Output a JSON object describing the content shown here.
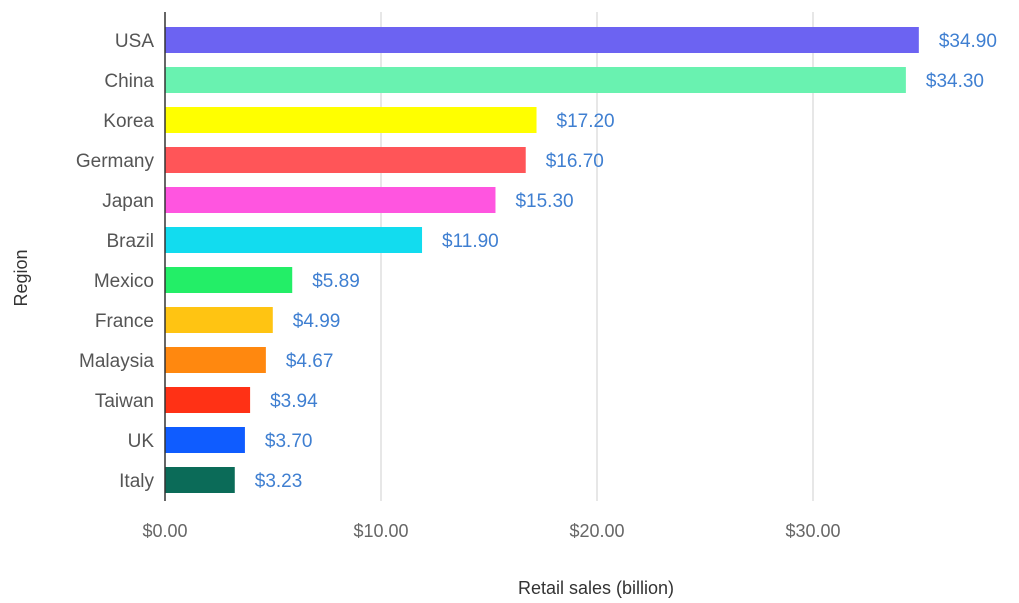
{
  "chart_data": {
    "type": "bar",
    "orientation": "horizontal",
    "title": "",
    "xlabel": "Retail sales (billion)",
    "ylabel": "Region",
    "xlim": [
      0,
      35
    ],
    "x_ticks": [
      {
        "value": 0,
        "label": "$0.00"
      },
      {
        "value": 10,
        "label": "$10.00"
      },
      {
        "value": 20,
        "label": "$20.00"
      },
      {
        "value": 30,
        "label": "$30.00"
      }
    ],
    "grid": true,
    "legend": "none",
    "categories": [
      "USA",
      "China",
      "Korea",
      "Germany",
      "Japan",
      "Brazil",
      "Mexico",
      "France",
      "Malaysia",
      "Taiwan",
      "UK",
      "Italy"
    ],
    "values": [
      34.9,
      34.3,
      17.2,
      16.7,
      15.3,
      11.9,
      5.89,
      4.99,
      4.67,
      3.94,
      3.7,
      3.23
    ],
    "value_labels": [
      "$34.90",
      "$34.30",
      "$17.20",
      "$16.70",
      "$15.30",
      "$11.90",
      "$5.89",
      "$4.99",
      "$4.67",
      "$3.94",
      "$3.70",
      "$3.23"
    ],
    "colors": [
      "#6c63f2",
      "#69f2b0",
      "#ffff00",
      "#ff5558",
      "#ff55e0",
      "#12dcef",
      "#23ee67",
      "#ffc412",
      "#ff880f",
      "#ff3115",
      "#0f5cff",
      "#0b6b58"
    ]
  }
}
